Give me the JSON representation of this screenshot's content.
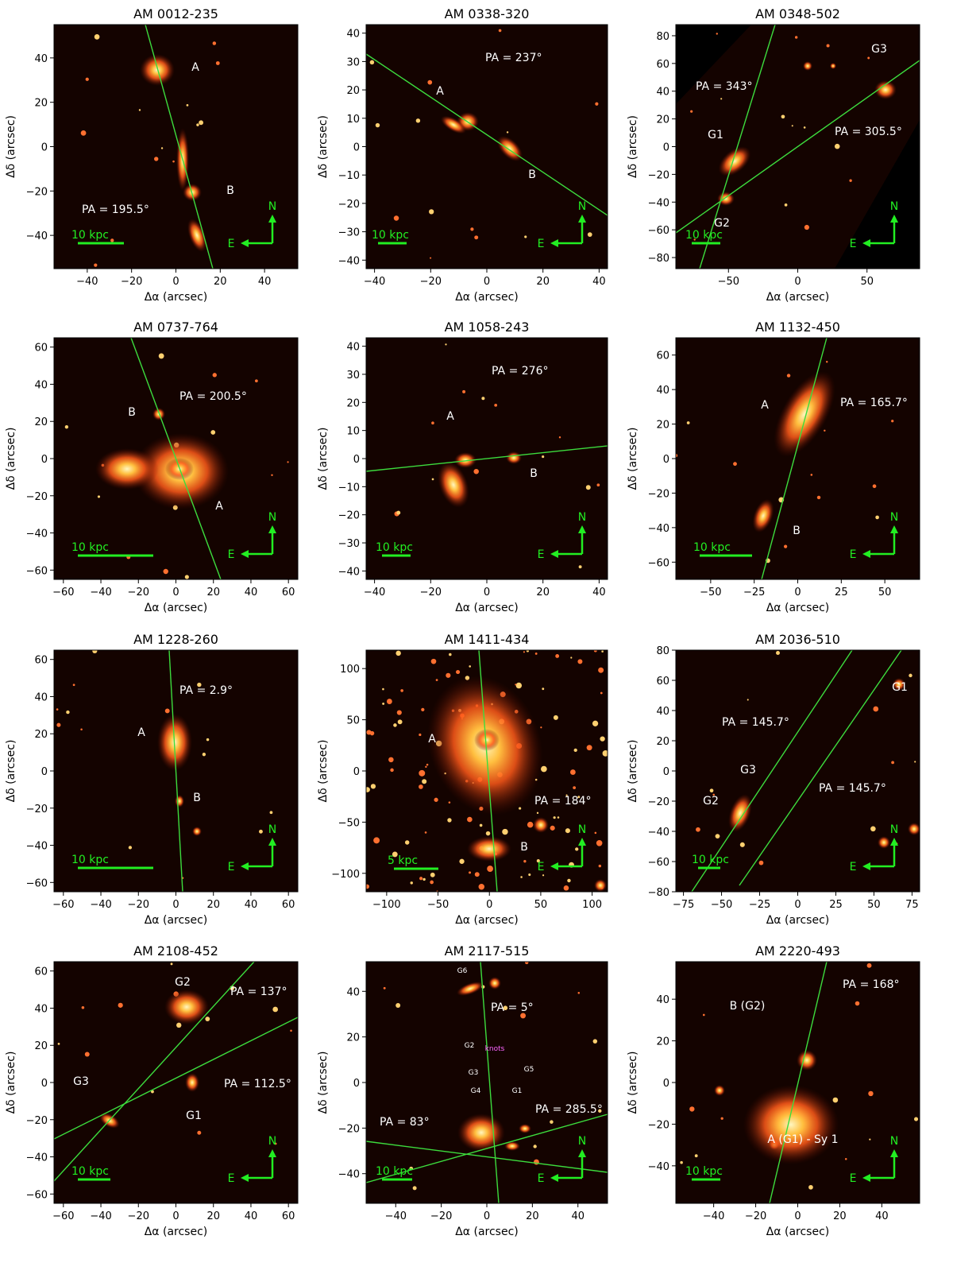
{
  "figure": {
    "xlabel": "Δα (arcsec)",
    "ylabel": "Δδ (arcsec)",
    "compass": {
      "north": "N",
      "east": "E"
    },
    "colors": {
      "background": "#000000",
      "galaxy_core": "#fff6c0",
      "galaxy_glow": "#ff5a1a",
      "slit": "#3ddc3d",
      "scale_bar": "#22ee22",
      "label_text": "#ffffff",
      "knot_label": "#ff66ff"
    },
    "panels": [
      {
        "title": "AM 0012-235",
        "xticks": [
          -40,
          -20,
          0,
          20,
          40
        ],
        "yticks": [
          40,
          20,
          0,
          -20,
          -40
        ],
        "pa_labels": [
          "PA = 195.5°"
        ],
        "galaxy_labels": [
          "A",
          "B"
        ],
        "scale_bar": "10 kpc"
      },
      {
        "title": "AM 0338-320",
        "xticks": [
          -40,
          -20,
          0,
          20,
          40
        ],
        "yticks": [
          40,
          30,
          20,
          10,
          0,
          -10,
          -20,
          -30,
          -40
        ],
        "pa_labels": [
          "PA = 237°"
        ],
        "galaxy_labels": [
          "A",
          "B"
        ],
        "scale_bar": "10 kpc"
      },
      {
        "title": "AM 0348-502",
        "xticks": [
          -50,
          0,
          50
        ],
        "yticks": [
          80,
          60,
          40,
          20,
          0,
          -20,
          -40,
          -60,
          -80
        ],
        "pa_labels": [
          "PA = 343°",
          "PA = 305.5°"
        ],
        "galaxy_labels": [
          "G3",
          "G1",
          "G2"
        ],
        "scale_bar": "10 kpc"
      },
      {
        "title": "AM 0737-764",
        "xticks": [
          -60,
          -40,
          -20,
          0,
          20,
          40,
          60
        ],
        "yticks": [
          60,
          40,
          20,
          0,
          -20,
          -40,
          -60
        ],
        "pa_labels": [
          "PA = 200.5°"
        ],
        "galaxy_labels": [
          "B",
          "A"
        ],
        "scale_bar": "10 kpc"
      },
      {
        "title": "AM 1058-243",
        "xticks": [
          -40,
          -20,
          0,
          20,
          40
        ],
        "yticks": [
          40,
          30,
          20,
          10,
          0,
          -10,
          -20,
          -30,
          -40
        ],
        "pa_labels": [
          "PA = 276°"
        ],
        "galaxy_labels": [
          "A",
          "B"
        ],
        "scale_bar": "10 kpc"
      },
      {
        "title": "AM 1132-450",
        "xticks": [
          -50,
          -25,
          0,
          25,
          50
        ],
        "yticks": [
          60,
          40,
          20,
          0,
          -20,
          -40,
          -60
        ],
        "pa_labels": [
          "PA = 165.7°"
        ],
        "galaxy_labels": [
          "A",
          "B"
        ],
        "scale_bar": "10 kpc"
      },
      {
        "title": "AM 1228-260",
        "xticks": [
          -60,
          -40,
          -20,
          0,
          20,
          40,
          60
        ],
        "yticks": [
          60,
          40,
          20,
          0,
          -20,
          -40,
          -60
        ],
        "pa_labels": [
          "PA = 2.9°"
        ],
        "galaxy_labels": [
          "A",
          "B"
        ],
        "scale_bar": "10 kpc"
      },
      {
        "title": "AM 1411-434",
        "xticks": [
          -100,
          -50,
          0,
          50,
          100
        ],
        "yticks": [
          100,
          50,
          0,
          -50,
          -100
        ],
        "pa_labels": [
          "PA = 184°"
        ],
        "galaxy_labels": [
          "A",
          "B"
        ],
        "scale_bar": "5 kpc"
      },
      {
        "title": "AM 2036-510",
        "xticks": [
          -75,
          -50,
          -25,
          0,
          25,
          50,
          75
        ],
        "yticks": [
          80,
          60,
          40,
          20,
          0,
          -20,
          -40,
          -60,
          -80
        ],
        "pa_labels": [
          "PA = 145.7°",
          "PA = 145.7°"
        ],
        "galaxy_labels": [
          "G1",
          "G3",
          "G2"
        ],
        "scale_bar": "10 kpc"
      },
      {
        "title": "AM 2108-452",
        "xticks": [
          -60,
          -40,
          -20,
          0,
          20,
          40,
          60
        ],
        "yticks": [
          60,
          40,
          20,
          0,
          -20,
          -40,
          -60
        ],
        "pa_labels": [
          "PA = 137°",
          "PA = 112.5°"
        ],
        "galaxy_labels": [
          "G2",
          "G3",
          "G1"
        ],
        "scale_bar": "10 kpc"
      },
      {
        "title": "AM 2117-515",
        "xticks": [
          -40,
          -20,
          0,
          20,
          40
        ],
        "yticks": [
          40,
          20,
          0,
          -20,
          -40
        ],
        "pa_labels": [
          "PA = 5°",
          "PA = 83°",
          "PA = 285.5°"
        ],
        "galaxy_labels": [
          "G6",
          "G2",
          "knots",
          "G3",
          "G5",
          "G4",
          "G1"
        ],
        "scale_bar": "10 kpc"
      },
      {
        "title": "AM 2220-493",
        "xticks": [
          -40,
          -20,
          0,
          20,
          40
        ],
        "yticks": [
          40,
          20,
          0,
          -20,
          -40
        ],
        "pa_labels": [
          "PA = 168°"
        ],
        "galaxy_labels": [
          "B (G2)",
          "A (G1) - Sy 1"
        ],
        "scale_bar": "10 kpc"
      }
    ]
  }
}
